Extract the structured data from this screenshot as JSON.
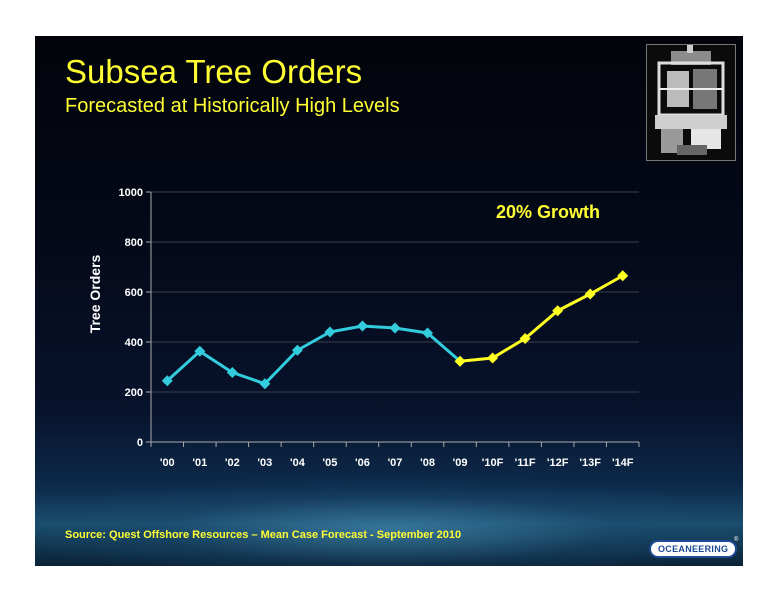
{
  "slide": {
    "title": "Subsea Tree Orders",
    "subtitle": "Forecasted at Historically High Levels",
    "source": "Source:  Quest Offshore Resources – Mean Case Forecast - September 2010",
    "logo_text": "OCEANEERING",
    "logo_mark": "®"
  },
  "colors": {
    "title": "#ffff33",
    "actual_series": "#33ccdd",
    "forecast_series": "#ffff22",
    "annotation": "#ffff33"
  },
  "chart_data": {
    "type": "line",
    "title": "",
    "xlabel": "",
    "ylabel": "Tree Orders",
    "ylim": [
      0,
      1000
    ],
    "y_ticks": [
      0,
      200,
      400,
      600,
      800,
      1000
    ],
    "grid": true,
    "annotation": "20% Growth",
    "categories": [
      "'00",
      "'01",
      "'02",
      "'03",
      "'04",
      "'05",
      "'06",
      "'07",
      "'08",
      "'09",
      "'10F",
      "'11F",
      "'12F",
      "'13F",
      "'14F"
    ],
    "series": [
      {
        "name": "",
        "color": "#33ccdd",
        "values": [
          245,
          363,
          278,
          233,
          367,
          440,
          464,
          456,
          436,
          323,
          null,
          null,
          null,
          null,
          null
        ]
      },
      {
        "name": "",
        "color": "#ffff22",
        "values": [
          null,
          null,
          null,
          null,
          null,
          null,
          null,
          null,
          null,
          323,
          336,
          414,
          525,
          592,
          665
        ]
      }
    ]
  }
}
